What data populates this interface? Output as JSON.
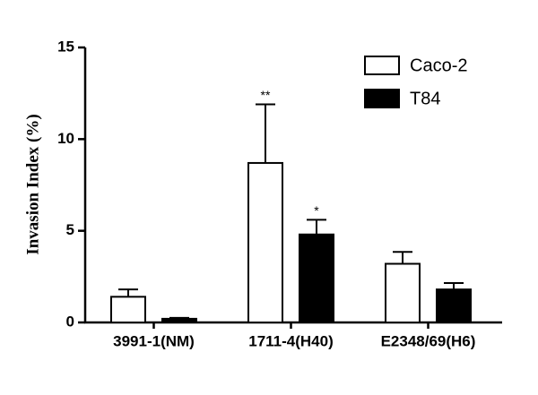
{
  "chart_data": {
    "type": "bar",
    "ylabel": "Invasion Index (%)",
    "categories": [
      "3991-1(NM)",
      "1711-4(H40)",
      "E2348/69(H6)"
    ],
    "series": [
      {
        "name": "Caco-2",
        "color": "#ffffff",
        "values": [
          1.4,
          8.7,
          3.2
        ],
        "errors": [
          0.4,
          3.2,
          0.65
        ],
        "annotations": [
          null,
          "**",
          null
        ]
      },
      {
        "name": "T84",
        "color": "#000000",
        "values": [
          0.2,
          4.8,
          1.8
        ],
        "errors": [
          0.05,
          0.8,
          0.35
        ],
        "annotations": [
          null,
          "*",
          null
        ]
      }
    ],
    "ylim": [
      0,
      15
    ],
    "yticks": [
      0,
      5,
      10,
      15
    ],
    "legend": "upper right"
  }
}
